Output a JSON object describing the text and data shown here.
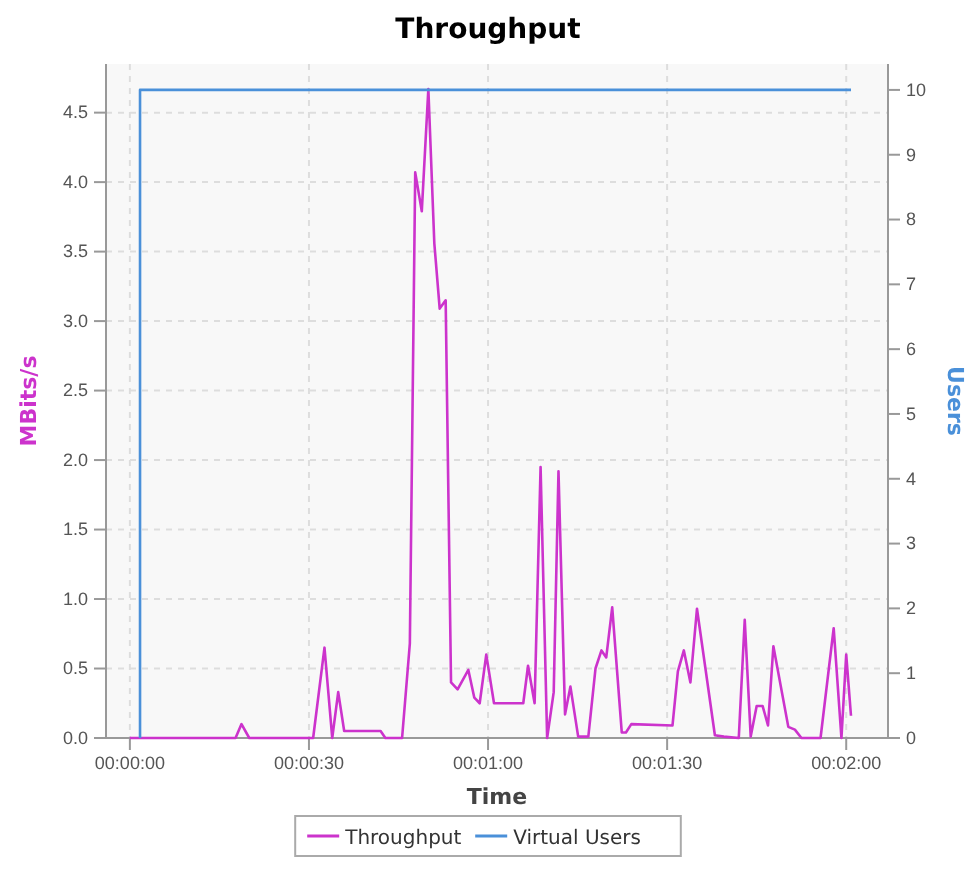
{
  "chart_data": {
    "type": "line",
    "title": "Throughput",
    "xlabel": "Time",
    "ylabel": "MBits/s",
    "y2label": "Users",
    "xlim": [
      -4,
      127
    ],
    "xticks": [
      {
        "value": 0,
        "label": "00:00:00"
      },
      {
        "value": 30,
        "label": "00:00:30"
      },
      {
        "value": 60,
        "label": "00:01:00"
      },
      {
        "value": 90,
        "label": "00:01:30"
      },
      {
        "value": 120,
        "label": "00:02:00"
      }
    ],
    "ylim": [
      0,
      4.85
    ],
    "yticks": [
      {
        "value": 0,
        "label": "0.0"
      },
      {
        "value": 0.5,
        "label": "0.5"
      },
      {
        "value": 1,
        "label": "1.0"
      },
      {
        "value": 1.5,
        "label": "1.5"
      },
      {
        "value": 2,
        "label": "2.0"
      },
      {
        "value": 2.5,
        "label": "2.5"
      },
      {
        "value": 3,
        "label": "3.0"
      },
      {
        "value": 3.5,
        "label": "3.5"
      },
      {
        "value": 4,
        "label": "4.0"
      },
      {
        "value": 4.5,
        "label": "4.5"
      }
    ],
    "y2lim": [
      0,
      10.4
    ],
    "y2ticks": [
      0,
      1,
      2,
      3,
      4,
      5,
      6,
      7,
      8,
      9,
      10
    ],
    "grid": true,
    "legend": "bottom",
    "marker": "none",
    "line_style": "solid",
    "series": [
      {
        "name": "Throughput",
        "color": "#cc33cc",
        "x": [
          0,
          17.7,
          18.7,
          20,
          30.7,
          32.6,
          33.9,
          34.9,
          35.9,
          42,
          42.8,
          45.6,
          46.9,
          47.8,
          48.9,
          50,
          51,
          51.9,
          52.9,
          53.8,
          54.9,
          56.7,
          57.7,
          58.6,
          59.7,
          61,
          65.9,
          66.7,
          67.8,
          68.8,
          69.9,
          71,
          71.8,
          72.9,
          73.8,
          75.1,
          76.8,
          78,
          79,
          79.8,
          80.8,
          82.4,
          83.1,
          84,
          90.9,
          91.8,
          92.8,
          93.9,
          95,
          98,
          99.5,
          102,
          103,
          104,
          105,
          106,
          106.9,
          107.8,
          110.3,
          111.4,
          112.5,
          115.7,
          117.9,
          119.2,
          120,
          120.8
        ],
        "values": [
          0,
          0,
          0.1,
          0,
          0,
          0.65,
          0,
          0.33,
          0.05,
          0.05,
          0,
          0,
          0.68,
          4.07,
          3.79,
          4.67,
          3.56,
          3.09,
          3.15,
          0.4,
          0.35,
          0.49,
          0.29,
          0.25,
          0.6,
          0.25,
          0.25,
          0.52,
          0.25,
          1.95,
          0,
          0.33,
          1.92,
          0.17,
          0.37,
          0.01,
          0.01,
          0.5,
          0.63,
          0.58,
          0.94,
          0.04,
          0.04,
          0.1,
          0.09,
          0.48,
          0.63,
          0.4,
          0.93,
          0.02,
          0.01,
          0,
          0.85,
          0.01,
          0.23,
          0.23,
          0.09,
          0.66,
          0.08,
          0.06,
          0,
          0,
          0.79,
          0,
          0.6,
          0.16
        ]
      },
      {
        "name": "Virtual Users",
        "color": "#4a90d9",
        "axis": "y2",
        "x": [
          1.7,
          1.7,
          120.8
        ],
        "values": [
          0,
          10,
          10
        ]
      }
    ]
  }
}
